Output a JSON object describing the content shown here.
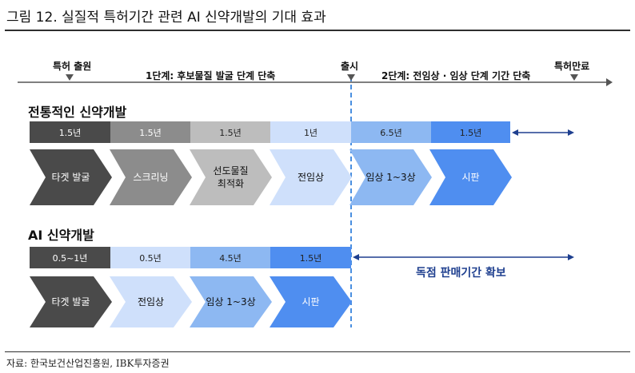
{
  "figure_title": "그림 12. 실질적 특허기간 관련 AI 신약개발의 기대 효과",
  "timeline": {
    "patent_filing": "특허 출원",
    "stage1": "1단계: 후보물질 발굴 단계 단축",
    "launch": "출시",
    "stage2": "2단계: 전임상 · 임상 단계 기간 단축",
    "patent_expiry": "특허만료"
  },
  "traditional": {
    "title": "전통적인 신약개발",
    "durations": [
      "1.5년",
      "1.5년",
      "1.5년",
      "1년",
      "6.5년",
      "1.5년"
    ],
    "stages": [
      "타겟 발굴",
      "스크리닝",
      "선도물질\n최적화",
      "전임상",
      "임상 1~3상",
      "시판"
    ]
  },
  "ai": {
    "title": "AI 신약개발",
    "durations": [
      "0.5~1년",
      "0.5년",
      "4.5년",
      "1.5년"
    ],
    "stages": [
      "타겟 발굴",
      "전임상",
      "임상 1~3상",
      "시판"
    ],
    "exclusive_label": "독점 판매기간 확보"
  },
  "source": "자료: 한국보건산업진흥원, IBK투자증권",
  "colors": {
    "dark": "#4a4a4a",
    "mid": "#8c8c8c",
    "light_gray": "#bdbdbd",
    "pale_blue": "#cfe0fb",
    "light_blue": "#8db8f2",
    "blue": "#4f8ef0",
    "navy": "#1e3f8f",
    "launch_line": "#4a8fe0"
  },
  "icons": [
    "triangle-marker-icon",
    "double-arrow-icon"
  ]
}
